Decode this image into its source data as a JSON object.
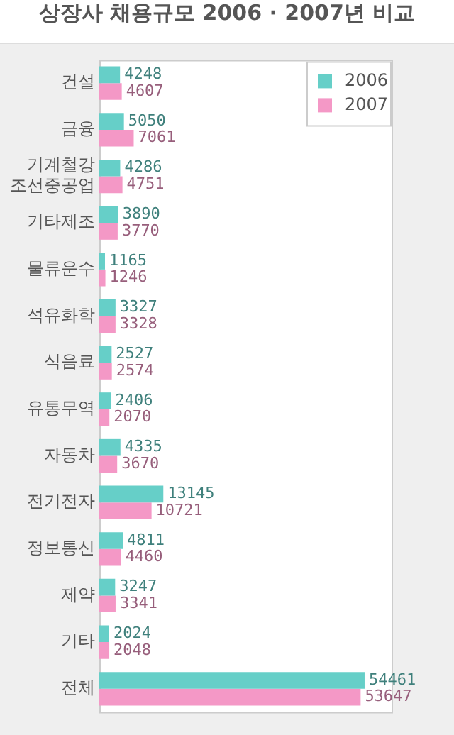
{
  "chart_data": {
    "type": "bar",
    "orientation": "horizontal",
    "title": "상장사 채용규모 2006 · 2007년 비교",
    "categories": [
      "건설",
      "금융",
      "기계철강\n조선중공업",
      "기타제조",
      "물류운수",
      "석유화학",
      "식음료",
      "유통무역",
      "자동차",
      "전기전자",
      "정보통신",
      "제약",
      "기타",
      "전체"
    ],
    "series": [
      {
        "name": "2006",
        "color": "#66cfc8",
        "values": [
          4248,
          5050,
          4286,
          3890,
          1165,
          3327,
          2527,
          2406,
          4335,
          13145,
          4811,
          3247,
          2024,
          54461
        ]
      },
      {
        "name": "2007",
        "color": "#f498c6",
        "values": [
          4607,
          7061,
          4751,
          3770,
          1246,
          3328,
          2574,
          2070,
          3670,
          10721,
          4460,
          3341,
          2048,
          53647
        ]
      }
    ],
    "data_labels": true,
    "legend": "top right"
  }
}
